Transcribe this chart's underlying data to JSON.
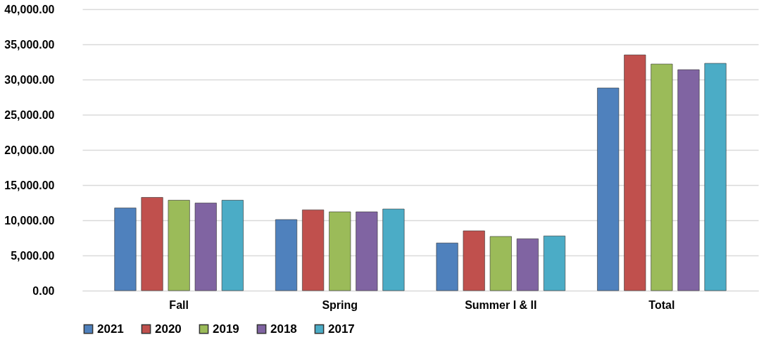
{
  "chart_data": {
    "type": "bar",
    "categories": [
      "Fall",
      "Spring",
      "Summer I & II",
      "Total"
    ],
    "series": [
      {
        "name": "2021",
        "color": "#4f81bd",
        "values": [
          11750,
          10100,
          6770,
          28800
        ]
      },
      {
        "name": "2020",
        "color": "#c0504d",
        "values": [
          13250,
          11480,
          8500,
          33500
        ]
      },
      {
        "name": "2019",
        "color": "#9bbb59",
        "values": [
          12850,
          11200,
          7700,
          32200
        ]
      },
      {
        "name": "2018",
        "color": "#8064a2",
        "values": [
          12450,
          11200,
          7370,
          31400
        ]
      },
      {
        "name": "2017",
        "color": "#4bacc6",
        "values": [
          12850,
          11600,
          7770,
          32300
        ]
      }
    ],
    "ylim": [
      0,
      40000
    ],
    "yticks": [
      {
        "value": 0,
        "label": "0.00"
      },
      {
        "value": 5000,
        "label": "5,000.00"
      },
      {
        "value": 10000,
        "label": "10,000.00"
      },
      {
        "value": 15000,
        "label": "15,000.00"
      },
      {
        "value": 20000,
        "label": "20,000.00"
      },
      {
        "value": 25000,
        "label": "25,000.00"
      },
      {
        "value": 30000,
        "label": "30,000.00"
      },
      {
        "value": 35000,
        "label": "35,000.00"
      },
      {
        "value": 40000,
        "label": "40,000.00"
      }
    ],
    "grid": "y",
    "legend": "bottom"
  }
}
